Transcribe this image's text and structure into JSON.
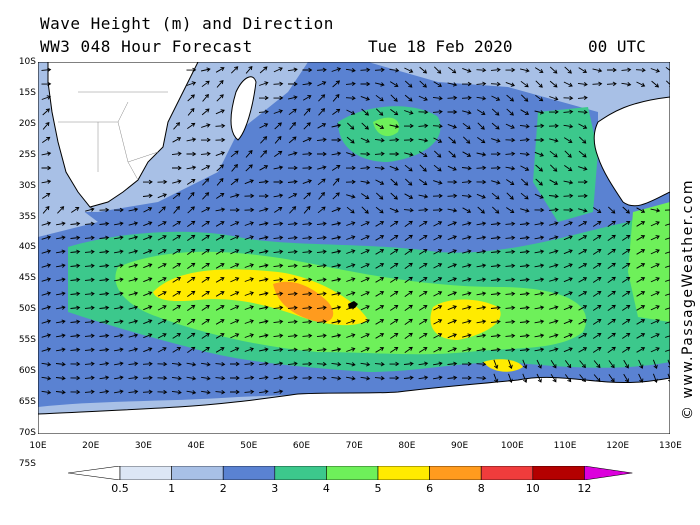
{
  "header": {
    "title_line1": "Wave Height (m) and Direction",
    "title_line2": "WW3 048 Hour Forecast",
    "date": "Tue 18 Feb 2020",
    "time": "00 UTC"
  },
  "credit": "© www.PassageWeather.com",
  "lat_labels": [
    "10S",
    "15S",
    "20S",
    "25S",
    "30S",
    "35S",
    "40S",
    "45S",
    "50S",
    "55S",
    "60S",
    "65S",
    "70S",
    "75S"
  ],
  "lon_labels": [
    "10E",
    "20E",
    "30E",
    "40E",
    "50E",
    "60E",
    "70E",
    "80E",
    "90E",
    "100E",
    "110E",
    "120E",
    "130E"
  ],
  "legend": {
    "values": [
      "0.5",
      "1",
      "2",
      "3",
      "4",
      "5",
      "6",
      "8",
      "10",
      "12"
    ],
    "colors": [
      "#ffffff",
      "#dce6f5",
      "#a8c0e6",
      "#5a82d2",
      "#3cc88c",
      "#6ef05a",
      "#ffeb00",
      "#ff9b1e",
      "#f03c3c",
      "#b40000",
      "#dc00dc"
    ]
  },
  "map_colors": {
    "land": "#ffffff",
    "coast": "#000000",
    "arrow": "#000000"
  }
}
